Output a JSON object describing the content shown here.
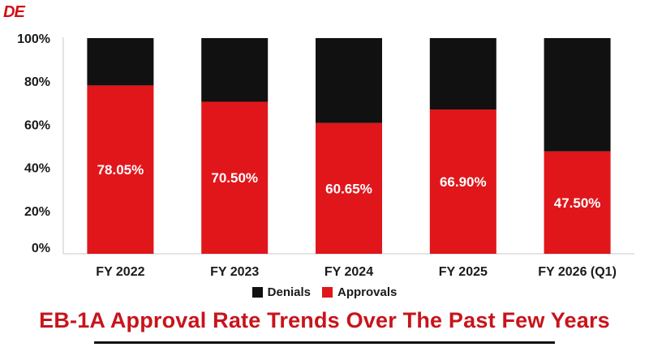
{
  "logo": {
    "text": "DE"
  },
  "chart_data": {
    "type": "bar",
    "stacked": true,
    "title": "EB-1A Approval Rate Trends Over The Past Few Years",
    "categories": [
      "FY 2022",
      "FY 2023",
      "FY 2024",
      "FY 2025",
      "FY 2026 (Q1)"
    ],
    "series": [
      {
        "name": "Approvals",
        "color": "#e0161b",
        "values": [
          78.05,
          70.5,
          60.65,
          66.9,
          47.5
        ]
      },
      {
        "name": "Denials",
        "color": "#111111",
        "values": [
          21.95,
          29.5,
          39.35,
          33.1,
          52.5
        ]
      }
    ],
    "data_labels": [
      "78.05%",
      "70.50%",
      "60.65%",
      "66.90%",
      "47.50%"
    ],
    "y_ticks": [
      "0%",
      "20%",
      "40%",
      "60%",
      "80%",
      "100%"
    ],
    "ylim": [
      0,
      100
    ],
    "grid": false,
    "legend": {
      "position": "bottom",
      "entries": [
        {
          "label": "Denials",
          "color": "#111111"
        },
        {
          "label": "Approvals",
          "color": "#e0161b"
        }
      ]
    }
  }
}
